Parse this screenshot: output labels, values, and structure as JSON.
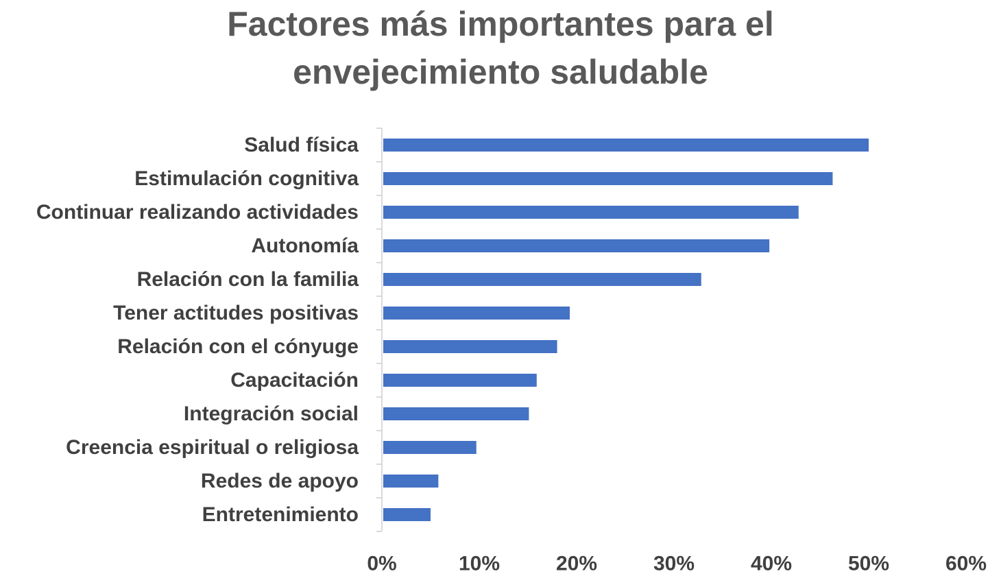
{
  "chart_data": {
    "type": "bar",
    "orientation": "horizontal",
    "title_lines": [
      "Factores más importantes para el",
      "envejecimiento saludable"
    ],
    "categories": [
      "Salud física",
      "Estimulación cognitiva",
      "Continuar realizando actividades",
      "Autonomía",
      "Relación con la familia",
      "Tener actitudes positivas",
      "Relación con el cónyuge",
      "Capacitación",
      "Integración social",
      "Creencia espiritual o religiosa",
      "Redes de apoyo",
      "Entretenimiento"
    ],
    "values": [
      0.5,
      0.463,
      0.428,
      0.398,
      0.328,
      0.193,
      0.18,
      0.159,
      0.151,
      0.097,
      0.058,
      0.05
    ],
    "xlim": [
      0,
      0.6
    ],
    "x_ticks": [
      0,
      0.1,
      0.2,
      0.3,
      0.4,
      0.5,
      0.6
    ],
    "x_tick_labels": [
      "0%",
      "10%",
      "20%",
      "30%",
      "40%",
      "50%",
      "60%"
    ],
    "xlabel": "",
    "ylabel": "",
    "grid": false,
    "legend": "none",
    "bar_color": "#4472C4",
    "axis_color": "#D9D9D9"
  }
}
